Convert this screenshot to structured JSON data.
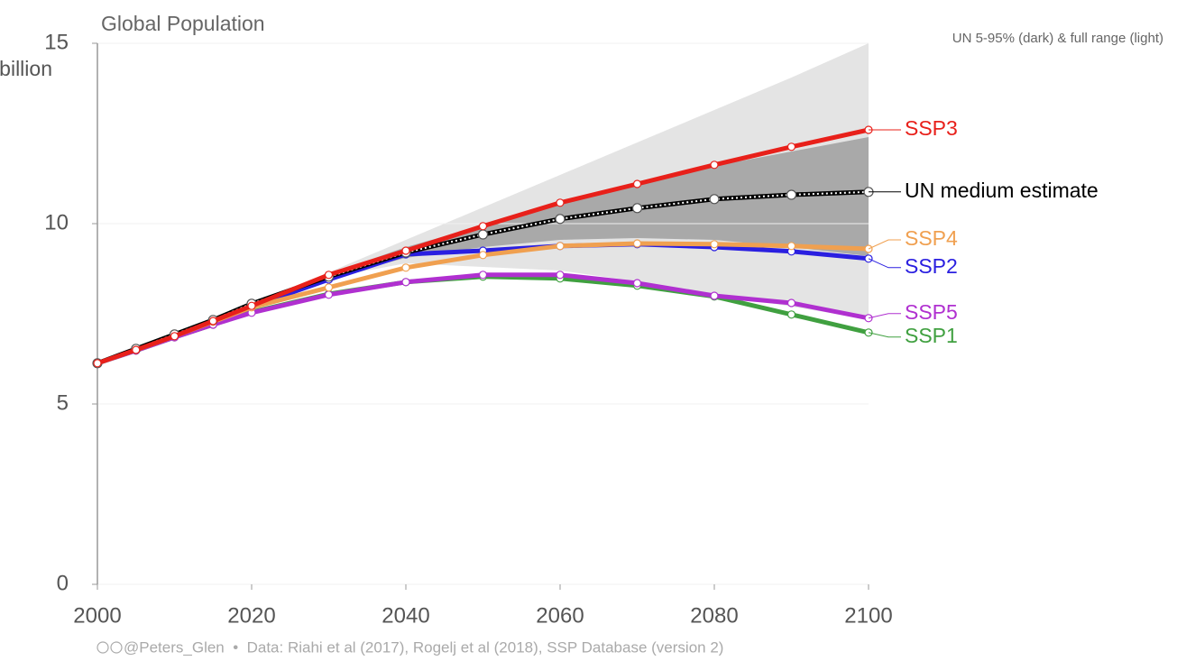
{
  "chart_data": {
    "type": "line",
    "title": "Global Population",
    "y_unit": "billion",
    "band_label": "UN 5-95% (dark) & full range (light)",
    "footer": "@Peters_Glen  •  Data: Riahi et al (2017), Rogelj et al (2018), SSP Database (version 2)",
    "x": [
      2000,
      2005,
      2010,
      2015,
      2020,
      2030,
      2040,
      2050,
      2060,
      2070,
      2080,
      2090,
      2100
    ],
    "xlim": [
      2000,
      2100
    ],
    "xticks": [
      2000,
      2020,
      2040,
      2060,
      2080,
      2100
    ],
    "ylim": [
      0,
      15
    ],
    "yticks": [
      0,
      5,
      10,
      15
    ],
    "grid": true,
    "bands": [
      {
        "color": "#e4e4e4",
        "x": [
          2030,
          2040,
          2050,
          2060,
          2070,
          2080,
          2090,
          2100
        ],
        "upper": [
          8.65,
          9.55,
          10.45,
          11.35,
          12.25,
          13.15,
          14.05,
          15
        ],
        "lower": [
          8.5,
          8.9,
          8.8,
          8.7,
          8.4,
          8.05,
          7.7,
          7.35
        ]
      },
      {
        "color": "#a9a9a9",
        "x": [
          2030,
          2040,
          2050,
          2060,
          2070,
          2080,
          2090,
          2100
        ],
        "upper": [
          8.6,
          9.35,
          9.95,
          10.55,
          11.1,
          11.6,
          12.0,
          12.4
        ],
        "lower": [
          8.5,
          9.05,
          9.35,
          9.55,
          9.6,
          9.55,
          9.35,
          9.1
        ]
      }
    ],
    "series": [
      {
        "name": "SSP3",
        "color": "#e8201a",
        "values": [
          6.13,
          6.5,
          6.88,
          7.3,
          7.72,
          8.58,
          9.25,
          9.93,
          10.58,
          11.1,
          11.63,
          12.13,
          12.6
        ]
      },
      {
        "name": "UN medium estimate",
        "color": "#000000",
        "values": [
          6.13,
          6.53,
          6.93,
          7.33,
          7.78,
          8.53,
          9.2,
          9.7,
          10.13,
          10.43,
          10.68,
          10.8,
          10.88
        ]
      },
      {
        "name": "SSP4",
        "color": "#f0a050",
        "values": [
          6.13,
          6.5,
          6.88,
          7.28,
          7.68,
          8.23,
          8.78,
          9.13,
          9.38,
          9.45,
          9.43,
          9.38,
          9.3
        ]
      },
      {
        "name": "SSP2",
        "color": "#2a1fe0",
        "values": [
          6.13,
          6.5,
          6.88,
          7.28,
          7.7,
          8.45,
          9.15,
          9.25,
          9.38,
          9.43,
          9.35,
          9.23,
          9.03
        ]
      },
      {
        "name": "SSP5",
        "color": "#b030d0",
        "values": [
          6.13,
          6.48,
          6.85,
          7.2,
          7.53,
          8.03,
          8.38,
          8.58,
          8.58,
          8.35,
          8.0,
          7.8,
          7.38
        ]
      },
      {
        "name": "SSP1",
        "color": "#40a040",
        "values": [
          6.13,
          6.48,
          6.85,
          7.2,
          7.55,
          8.05,
          8.38,
          8.53,
          8.48,
          8.28,
          7.98,
          7.48,
          6.98
        ]
      }
    ]
  }
}
